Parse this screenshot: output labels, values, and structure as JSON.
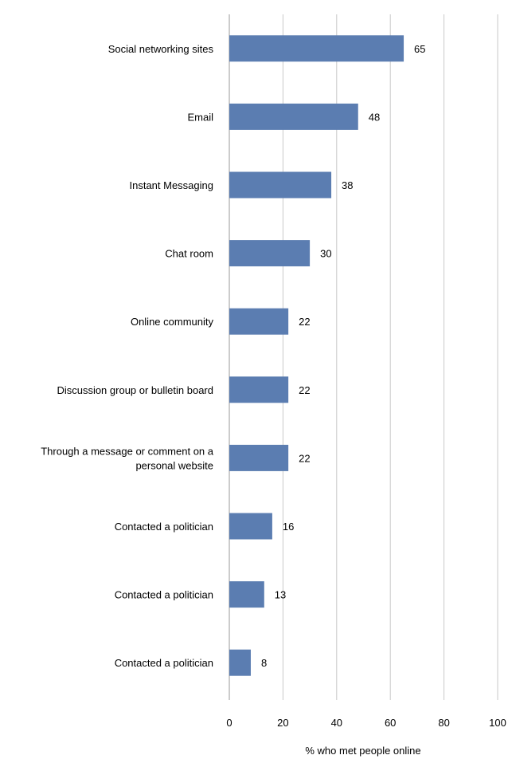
{
  "chart_data": {
    "type": "bar",
    "orientation": "horizontal",
    "title": "",
    "xlabel": "% who met people online",
    "ylabel": "",
    "xlim": [
      0,
      100
    ],
    "xticks": [
      0,
      20,
      40,
      60,
      80,
      100
    ],
    "grid": true,
    "legend": "none",
    "bar_color": "#5b7db1",
    "grid_color": "#c8c8c8",
    "categories": [
      [
        "Social networking sites"
      ],
      [
        "Email"
      ],
      [
        "Instant Messaging"
      ],
      [
        "Chat room"
      ],
      [
        "Online community"
      ],
      [
        "Discussion group or bulletin board"
      ],
      [
        "Through a message or comment on a",
        "personal website"
      ],
      [
        "Contacted a politician"
      ],
      [
        "Contacted a politician"
      ],
      [
        "Contacted a politician"
      ]
    ],
    "values": [
      65,
      48,
      38,
      30,
      22,
      22,
      22,
      16,
      13,
      8
    ]
  }
}
